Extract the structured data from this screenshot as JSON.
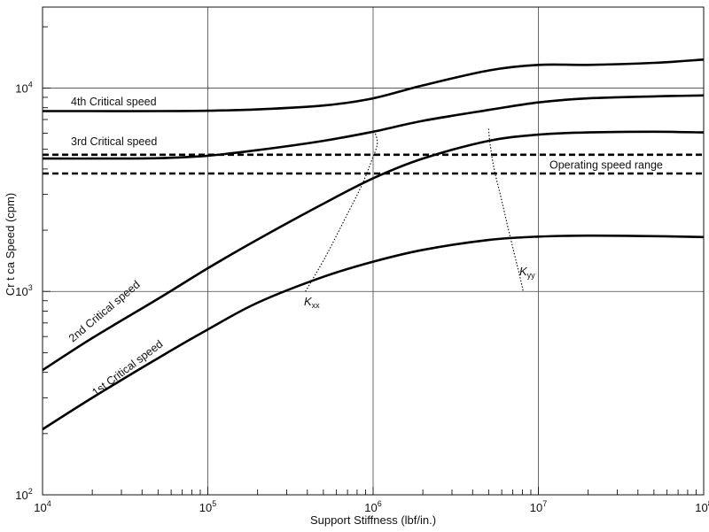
{
  "chart_data": {
    "type": "line",
    "title": "",
    "xlabel": "Support Stiffness (lbf/in.)",
    "ylabel": "Cr t ca  Speed (cpm)",
    "xscale": "log",
    "yscale": "log",
    "xlim": [
      10000,
      100000000
    ],
    "ylim": [
      100,
      25000
    ],
    "grid": true,
    "x_ticks": [
      {
        "base": "10",
        "exp": "4",
        "value": 10000
      },
      {
        "base": "10",
        "exp": "5",
        "value": 100000
      },
      {
        "base": "10",
        "exp": "6",
        "value": 1000000
      },
      {
        "base": "10",
        "exp": "7",
        "value": 10000000
      },
      {
        "base": "10",
        "exp": "8",
        "value": 100000000
      }
    ],
    "y_ticks": [
      {
        "base": "10",
        "exp": "2",
        "value": 100
      },
      {
        "base": "10",
        "exp": "3",
        "value": 1000
      },
      {
        "base": "10",
        "exp": "4",
        "value": 10000
      }
    ],
    "series": [
      {
        "name": "1st Critical speed",
        "x": [
          10000,
          20000,
          50000,
          100000,
          200000,
          500000,
          1000000,
          2000000,
          5000000,
          10000000,
          20000000,
          50000000,
          100000000
        ],
        "y": [
          210,
          300,
          470,
          650,
          880,
          1180,
          1400,
          1600,
          1790,
          1860,
          1880,
          1870,
          1850
        ]
      },
      {
        "name": "2nd Critical speed",
        "x": [
          10000,
          20000,
          50000,
          100000,
          200000,
          500000,
          1000000,
          2000000,
          5000000,
          10000000,
          20000000,
          50000000,
          100000000
        ],
        "y": [
          410,
          590,
          920,
          1300,
          1800,
          2700,
          3600,
          4500,
          5500,
          5900,
          6050,
          6100,
          6050
        ]
      },
      {
        "name": "3rd Critical speed",
        "x": [
          10000,
          20000,
          50000,
          100000,
          200000,
          500000,
          1000000,
          2000000,
          5000000,
          10000000,
          20000000,
          50000000,
          100000000
        ],
        "y": [
          4500,
          4500,
          4520,
          4650,
          4950,
          5500,
          6100,
          6900,
          7800,
          8500,
          8900,
          9100,
          9200
        ]
      },
      {
        "name": "4th Critical speed",
        "x": [
          10000,
          20000,
          50000,
          100000,
          200000,
          500000,
          1000000,
          2000000,
          5000000,
          10000000,
          20000000,
          50000000,
          100000000
        ],
        "y": [
          7700,
          7700,
          7700,
          7730,
          7850,
          8200,
          8900,
          10300,
          12200,
          13000,
          13000,
          13300,
          13800
        ]
      }
    ],
    "operating_speed_range": {
      "label": "Operating speed range",
      "lower": 3800,
      "upper": 4700
    },
    "stiffness_lines": [
      {
        "base": "K",
        "sub": "xx",
        "x": [
          390000,
          520000,
          680000,
          850000,
          980000,
          1060000,
          1030000
        ],
        "y": [
          1000,
          1500,
          2300,
          3300,
          4400,
          5300,
          6000
        ]
      },
      {
        "base": "K",
        "sub": "yy",
        "x": [
          5000000,
          5100000,
          5400000,
          6000000,
          6700000,
          7600000,
          8100000
        ],
        "y": [
          6300,
          5300,
          4000,
          2800,
          1900,
          1250,
          1000
        ]
      }
    ]
  }
}
